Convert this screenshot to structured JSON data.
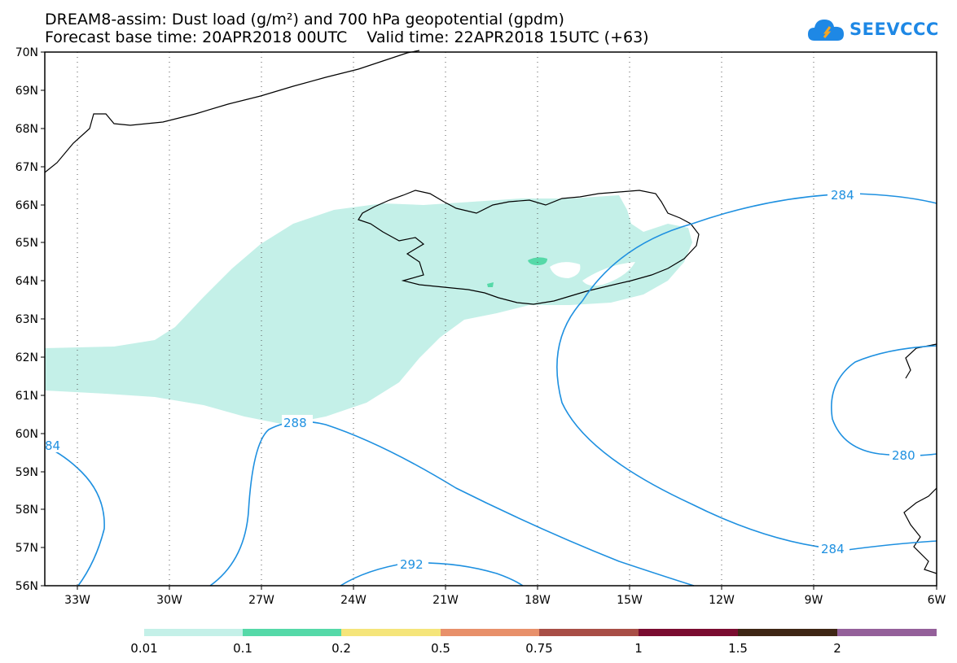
{
  "header": {
    "title_line1": "DREAM8-assim: Dust load (g/m²) and 700 hPa geopotential (gpdm)",
    "title_line2": "Forecast base time: 20APR2018 00UTC    Valid time: 22APR2018 15UTC (+63)"
  },
  "logo": {
    "text": "SEEVCCC",
    "icon": "cloud-icon"
  },
  "map": {
    "lat_labels": [
      "70N",
      "69N",
      "68N",
      "67N",
      "66N",
      "65N",
      "64N",
      "63N",
      "62N",
      "61N",
      "60N",
      "59N",
      "58N",
      "57N",
      "56N"
    ],
    "lon_labels": [
      "33W",
      "30W",
      "27W",
      "24W",
      "21W",
      "18W",
      "15W",
      "12W",
      "9W",
      "6W"
    ],
    "contour_labels": [
      "284",
      "288",
      "292",
      "280",
      "284",
      "84"
    ],
    "colors": {
      "dust_low": "#c4f0e8",
      "dust_mid": "#55d9a8",
      "contour": "#1e90e0",
      "coast": "#000000"
    }
  },
  "colorbar": {
    "labels": [
      "0.01",
      "0.1",
      "0.2",
      "0.5",
      "0.75",
      "1",
      "1.5",
      "2"
    ],
    "colors": [
      "#c4f0e8",
      "#55d9a8",
      "#f5e57a",
      "#e8906a",
      "#a84e46",
      "#7a0c30",
      "#3e2614",
      "#94609a"
    ]
  }
}
